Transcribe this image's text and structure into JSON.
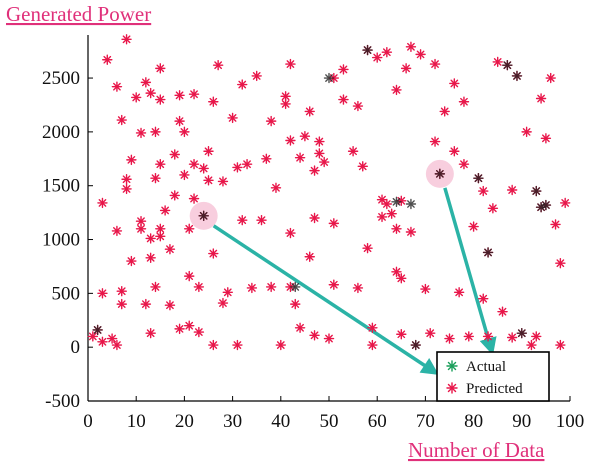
{
  "chart_data": {
    "type": "scatter",
    "title": "Generated Power",
    "xlabel": "Number of Data",
    "ylabel": "",
    "xlim": [
      0,
      100
    ],
    "ylim": [
      -500,
      2900
    ],
    "xticks": [
      "0",
      "10",
      "20",
      "30",
      "40",
      "50",
      "60",
      "70",
      "80",
      "90",
      "100"
    ],
    "yticks": [
      "-500",
      "0",
      "500",
      "1000",
      "1500",
      "2000",
      "2500"
    ],
    "grid": false,
    "legend_position": "bottom-right",
    "series": [
      {
        "name": "Actual",
        "color": "#1a9e5a",
        "marker": "star",
        "points": [
          [
            2,
            160
          ],
          [
            24,
            1220
          ],
          [
            43,
            560
          ],
          [
            50,
            2500
          ],
          [
            58,
            2760
          ],
          [
            64,
            1350
          ],
          [
            67,
            1330
          ],
          [
            68,
            20
          ],
          [
            73,
            1610
          ],
          [
            81,
            1570
          ],
          [
            83,
            880
          ],
          [
            87,
            2620
          ],
          [
            89,
            2520
          ],
          [
            90,
            130
          ],
          [
            93,
            1450
          ],
          [
            94,
            1300
          ],
          [
            95,
            1320
          ]
        ]
      },
      {
        "name": "Predicted",
        "color": "#e8174a",
        "marker": "star",
        "points": [
          [
            1,
            100
          ],
          [
            2,
            160
          ],
          [
            3,
            50
          ],
          [
            3,
            1340
          ],
          [
            3,
            500
          ],
          [
            4,
            2670
          ],
          [
            5,
            80
          ],
          [
            6,
            20
          ],
          [
            6,
            2420
          ],
          [
            6,
            1080
          ],
          [
            7,
            2110
          ],
          [
            7,
            520
          ],
          [
            7,
            400
          ],
          [
            8,
            2860
          ],
          [
            8,
            1560
          ],
          [
            8,
            1470
          ],
          [
            9,
            1740
          ],
          [
            9,
            800
          ],
          [
            10,
            2320
          ],
          [
            11,
            1990
          ],
          [
            11,
            1170
          ],
          [
            11,
            1100
          ],
          [
            12,
            2460
          ],
          [
            12,
            400
          ],
          [
            13,
            2360
          ],
          [
            13,
            1010
          ],
          [
            13,
            830
          ],
          [
            13,
            130
          ],
          [
            14,
            2000
          ],
          [
            14,
            1570
          ],
          [
            14,
            560
          ],
          [
            15,
            2590
          ],
          [
            15,
            2300
          ],
          [
            15,
            1700
          ],
          [
            15,
            1100
          ],
          [
            15,
            1030
          ],
          [
            16,
            1270
          ],
          [
            17,
            910
          ],
          [
            17,
            390
          ],
          [
            18,
            1410
          ],
          [
            18,
            1790
          ],
          [
            19,
            2340
          ],
          [
            19,
            2100
          ],
          [
            19,
            170
          ],
          [
            20,
            2000
          ],
          [
            20,
            1600
          ],
          [
            21,
            1100
          ],
          [
            21,
            660
          ],
          [
            21,
            200
          ],
          [
            22,
            2350
          ],
          [
            22,
            1700
          ],
          [
            22,
            1380
          ],
          [
            23,
            140
          ],
          [
            23,
            560
          ],
          [
            24,
            1220
          ],
          [
            24,
            1660
          ],
          [
            25,
            1550
          ],
          [
            25,
            1820
          ],
          [
            26,
            2280
          ],
          [
            26,
            870
          ],
          [
            26,
            20
          ],
          [
            27,
            2620
          ],
          [
            28,
            1540
          ],
          [
            28,
            410
          ],
          [
            29,
            510
          ],
          [
            30,
            2130
          ],
          [
            31,
            1670
          ],
          [
            31,
            20
          ],
          [
            32,
            2440
          ],
          [
            32,
            1180
          ],
          [
            33,
            1700
          ],
          [
            34,
            550
          ],
          [
            35,
            2520
          ],
          [
            36,
            1180
          ],
          [
            37,
            1750
          ],
          [
            38,
            2100
          ],
          [
            38,
            560
          ],
          [
            39,
            1480
          ],
          [
            40,
            20
          ],
          [
            41,
            2330
          ],
          [
            41,
            2260
          ],
          [
            42,
            1920
          ],
          [
            42,
            1060
          ],
          [
            42,
            560
          ],
          [
            42,
            2630
          ],
          [
            43,
            400
          ],
          [
            44,
            180
          ],
          [
            44,
            1760
          ],
          [
            45,
            1960
          ],
          [
            46,
            2190
          ],
          [
            46,
            840
          ],
          [
            47,
            1640
          ],
          [
            47,
            1200
          ],
          [
            47,
            110
          ],
          [
            48,
            1910
          ],
          [
            48,
            1800
          ],
          [
            49,
            1720
          ],
          [
            50,
            80
          ],
          [
            51,
            580
          ],
          [
            51,
            2500
          ],
          [
            51,
            1150
          ],
          [
            53,
            2580
          ],
          [
            53,
            2300
          ],
          [
            55,
            1820
          ],
          [
            56,
            550
          ],
          [
            56,
            2240
          ],
          [
            57,
            1680
          ],
          [
            58,
            2760
          ],
          [
            58,
            920
          ],
          [
            59,
            180
          ],
          [
            59,
            20
          ],
          [
            60,
            2690
          ],
          [
            61,
            1370
          ],
          [
            61,
            1210
          ],
          [
            62,
            2740
          ],
          [
            62,
            1330
          ],
          [
            63,
            1240
          ],
          [
            64,
            2390
          ],
          [
            64,
            1100
          ],
          [
            64,
            700
          ],
          [
            65,
            1360
          ],
          [
            65,
            640
          ],
          [
            65,
            120
          ],
          [
            66,
            2590
          ],
          [
            67,
            2790
          ],
          [
            67,
            1070
          ],
          [
            68,
            20
          ],
          [
            69,
            2720
          ],
          [
            70,
            540
          ],
          [
            71,
            130
          ],
          [
            72,
            2630
          ],
          [
            72,
            1910
          ],
          [
            73,
            1610
          ],
          [
            74,
            2190
          ],
          [
            75,
            80
          ],
          [
            76,
            2450
          ],
          [
            76,
            1820
          ],
          [
            77,
            510
          ],
          [
            78,
            1700
          ],
          [
            78,
            2280
          ],
          [
            79,
            100
          ],
          [
            80,
            1120
          ],
          [
            81,
            1570
          ],
          [
            82,
            1450
          ],
          [
            82,
            450
          ],
          [
            83,
            880
          ],
          [
            83,
            100
          ],
          [
            84,
            1290
          ],
          [
            85,
            2650
          ],
          [
            86,
            330
          ],
          [
            87,
            2620
          ],
          [
            88,
            1460
          ],
          [
            88,
            90
          ],
          [
            89,
            2520
          ],
          [
            90,
            130
          ],
          [
            91,
            2000
          ],
          [
            92,
            20
          ],
          [
            93,
            1450
          ],
          [
            93,
            100
          ],
          [
            94,
            1300
          ],
          [
            94,
            2310
          ],
          [
            95,
            1940
          ],
          [
            95,
            1320
          ],
          [
            96,
            2500
          ],
          [
            97,
            1140
          ],
          [
            98,
            780
          ],
          [
            98,
            20
          ],
          [
            99,
            1340
          ]
        ]
      }
    ]
  },
  "arrows_color": "#2bb3a6",
  "highlight_color": "#f7c6d8",
  "title_color": "#e0307a"
}
